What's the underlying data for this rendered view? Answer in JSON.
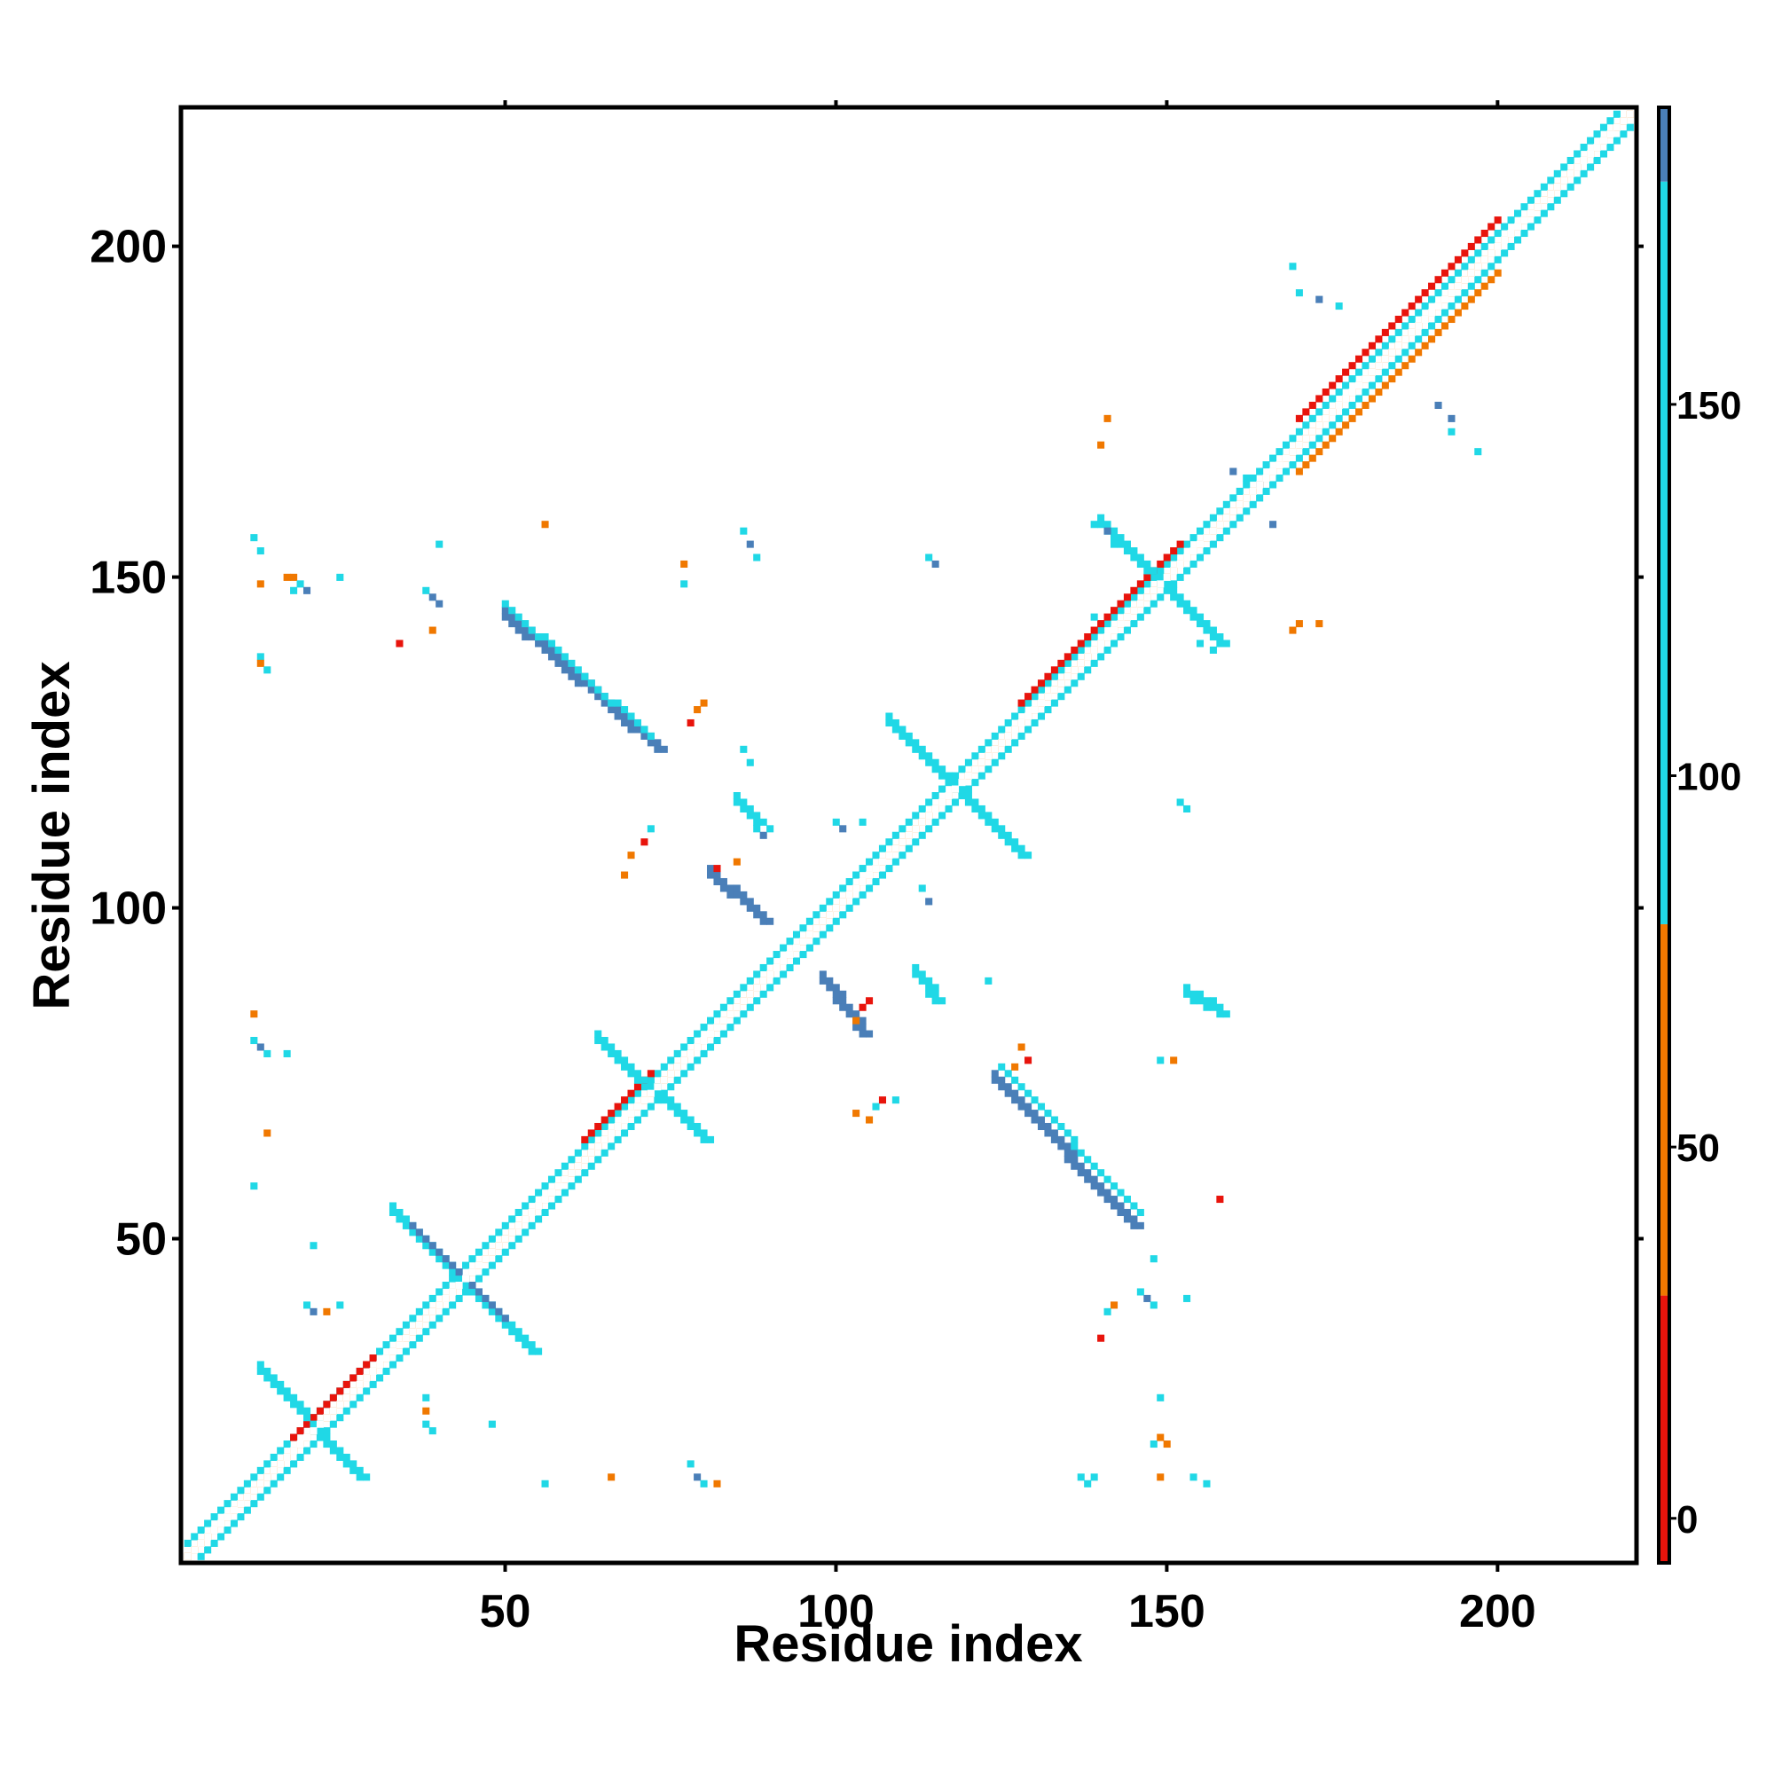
{
  "chart_data": {
    "type": "heatmap",
    "title": "",
    "xlabel": "Residue index",
    "ylabel": "Residue index",
    "xlim": [
      1,
      221
    ],
    "ylim": [
      1,
      221
    ],
    "xticks": [
      50,
      100,
      150,
      200
    ],
    "yticks": [
      50,
      100,
      150,
      200
    ],
    "grid": false,
    "colorbar": {
      "ticks": [
        0,
        50,
        100,
        150
      ],
      "range": [
        -6,
        190
      ],
      "bands": [
        {
          "from": -6,
          "to": 30,
          "color": "#e8140c"
        },
        {
          "from": 30,
          "to": 80,
          "color": "#f07800"
        },
        {
          "from": 80,
          "to": 180,
          "color": "#20d8e6"
        },
        {
          "from": 180,
          "to": 190,
          "color": "#4a7fb8"
        }
      ]
    },
    "colors": {
      "white": "#ffffff",
      "red": "#e8140c",
      "orange": "#f07800",
      "cyan": "#20d8e6",
      "steelblue": "#4a7fb8"
    },
    "segments": [
      {
        "c": "orange",
        "x1": 2,
        "y1": 2,
        "x2": 220,
        "y2": 220,
        "w": 1
      },
      {
        "c": "cyan",
        "x1": 2,
        "y1": 4,
        "x2": 218,
        "y2": 220,
        "w": 1
      },
      {
        "c": "cyan",
        "x1": 4,
        "y1": 2,
        "x2": 220,
        "y2": 218,
        "w": 1
      },
      {
        "c": "red",
        "x1": 18,
        "y1": 20,
        "x2": 30,
        "y2": 32,
        "w": 1
      },
      {
        "c": "red",
        "x1": 62,
        "y1": 65,
        "x2": 72,
        "y2": 75,
        "w": 1
      },
      {
        "c": "red",
        "x1": 128,
        "y1": 131,
        "x2": 152,
        "y2": 155,
        "w": 1
      },
      {
        "c": "red",
        "x1": 170,
        "y1": 174,
        "x2": 200,
        "y2": 204,
        "w": 1
      },
      {
        "c": "orange",
        "x1": 170,
        "y1": 166,
        "x2": 200,
        "y2": 196,
        "w": 1
      },
      {
        "c": "cyan",
        "x1": 13,
        "y1": 30,
        "x2": 28,
        "y2": 14,
        "w": 2
      },
      {
        "c": "cyan",
        "x1": 33,
        "y1": 54,
        "x2": 54,
        "y2": 33,
        "w": 2
      },
      {
        "c": "steelblue",
        "x1": 36,
        "y1": 52,
        "x2": 50,
        "y2": 38,
        "w": 1
      },
      {
        "c": "cyan",
        "x1": 64,
        "y1": 80,
        "x2": 80,
        "y2": 65,
        "w": 2
      },
      {
        "c": "cyan",
        "x1": 108,
        "y1": 128,
        "x2": 128,
        "y2": 108,
        "w": 2
      },
      {
        "c": "cyan",
        "x1": 140,
        "y1": 158,
        "x2": 158,
        "y2": 140,
        "w": 2
      },
      {
        "c": "steelblue",
        "x1": 50,
        "y1": 144,
        "x2": 73,
        "y2": 124,
        "w": 2
      },
      {
        "c": "cyan",
        "x1": 50,
        "y1": 146,
        "x2": 72,
        "y2": 126,
        "w": 1
      },
      {
        "c": "steelblue",
        "x1": 124,
        "y1": 74,
        "x2": 145,
        "y2": 52,
        "w": 2
      },
      {
        "c": "cyan",
        "x1": 126,
        "y1": 75,
        "x2": 146,
        "y2": 54,
        "w": 1
      },
      {
        "c": "steelblue",
        "x1": 81,
        "y1": 105,
        "x2": 89,
        "y2": 98,
        "w": 2
      },
      {
        "c": "steelblue",
        "x1": 98,
        "y1": 89,
        "x2": 104,
        "y2": 81,
        "w": 2
      },
      {
        "c": "cyan",
        "x1": 112,
        "y1": 90,
        "x2": 115,
        "y2": 86,
        "w": 2
      },
      {
        "c": "cyan",
        "x1": 153,
        "y1": 87,
        "x2": 158,
        "y2": 84,
        "w": 2
      },
      {
        "c": "cyan",
        "x1": 85,
        "y1": 116,
        "x2": 88,
        "y2": 113,
        "w": 2
      }
    ],
    "points": [
      {
        "c": "cyan",
        "x": 13,
        "y": 138
      },
      {
        "c": "orange",
        "x": 13,
        "y": 137
      },
      {
        "c": "cyan",
        "x": 14,
        "y": 136
      },
      {
        "c": "orange",
        "x": 17,
        "y": 150
      },
      {
        "c": "orange",
        "x": 18,
        "y": 150
      },
      {
        "c": "cyan",
        "x": 18,
        "y": 148
      },
      {
        "c": "cyan",
        "x": 19,
        "y": 149
      },
      {
        "c": "steelblue",
        "x": 20,
        "y": 148
      },
      {
        "c": "cyan",
        "x": 25,
        "y": 150
      },
      {
        "c": "orange",
        "x": 13,
        "y": 149
      },
      {
        "c": "cyan",
        "x": 12,
        "y": 156
      },
      {
        "c": "cyan",
        "x": 13,
        "y": 154
      },
      {
        "c": "cyan",
        "x": 38,
        "y": 148
      },
      {
        "c": "steelblue",
        "x": 39,
        "y": 147
      },
      {
        "c": "steelblue",
        "x": 40,
        "y": 146
      },
      {
        "c": "cyan",
        "x": 40,
        "y": 155
      },
      {
        "c": "orange",
        "x": 39,
        "y": 142
      },
      {
        "c": "red",
        "x": 34,
        "y": 140
      },
      {
        "c": "cyan",
        "x": 12,
        "y": 80
      },
      {
        "c": "steelblue",
        "x": 13,
        "y": 79
      },
      {
        "c": "cyan",
        "x": 14,
        "y": 78
      },
      {
        "c": "orange",
        "x": 12,
        "y": 84
      },
      {
        "c": "cyan",
        "x": 17,
        "y": 78
      },
      {
        "c": "orange",
        "x": 14,
        "y": 66
      },
      {
        "c": "cyan",
        "x": 12,
        "y": 58
      },
      {
        "c": "cyan",
        "x": 21,
        "y": 49
      },
      {
        "c": "cyan",
        "x": 20,
        "y": 40
      },
      {
        "c": "steelblue",
        "x": 21,
        "y": 39
      },
      {
        "c": "orange",
        "x": 23,
        "y": 39
      },
      {
        "c": "cyan",
        "x": 25,
        "y": 40
      },
      {
        "c": "cyan",
        "x": 38,
        "y": 22
      },
      {
        "c": "cyan",
        "x": 39,
        "y": 21
      },
      {
        "c": "orange",
        "x": 38,
        "y": 24
      },
      {
        "c": "cyan",
        "x": 38,
        "y": 26
      },
      {
        "c": "cyan",
        "x": 48,
        "y": 22
      },
      {
        "c": "cyan",
        "x": 78,
        "y": 16
      },
      {
        "c": "steelblue",
        "x": 79,
        "y": 14
      },
      {
        "c": "cyan",
        "x": 80,
        "y": 13
      },
      {
        "c": "orange",
        "x": 82,
        "y": 13
      },
      {
        "c": "orange",
        "x": 66,
        "y": 14
      },
      {
        "c": "cyan",
        "x": 56,
        "y": 13
      },
      {
        "c": "cyan",
        "x": 137,
        "y": 14
      },
      {
        "c": "cyan",
        "x": 138,
        "y": 13
      },
      {
        "c": "cyan",
        "x": 139,
        "y": 14
      },
      {
        "c": "cyan",
        "x": 148,
        "y": 19
      },
      {
        "c": "orange",
        "x": 149,
        "y": 20
      },
      {
        "c": "orange",
        "x": 150,
        "y": 19
      },
      {
        "c": "orange",
        "x": 149,
        "y": 14
      },
      {
        "c": "cyan",
        "x": 149,
        "y": 26
      },
      {
        "c": "cyan",
        "x": 154,
        "y": 14
      },
      {
        "c": "cyan",
        "x": 156,
        "y": 13
      },
      {
        "c": "cyan",
        "x": 146,
        "y": 42
      },
      {
        "c": "steelblue",
        "x": 147,
        "y": 41
      },
      {
        "c": "cyan",
        "x": 148,
        "y": 40
      },
      {
        "c": "cyan",
        "x": 153,
        "y": 41
      },
      {
        "c": "orange",
        "x": 142,
        "y": 40
      },
      {
        "c": "red",
        "x": 140,
        "y": 35
      },
      {
        "c": "cyan",
        "x": 141,
        "y": 39
      },
      {
        "c": "cyan",
        "x": 148,
        "y": 47
      },
      {
        "c": "cyan",
        "x": 149,
        "y": 77
      },
      {
        "c": "orange",
        "x": 151,
        "y": 77
      },
      {
        "c": "red",
        "x": 158,
        "y": 56
      },
      {
        "c": "orange",
        "x": 128,
        "y": 79
      },
      {
        "c": "red",
        "x": 129,
        "y": 77
      },
      {
        "c": "orange",
        "x": 127,
        "y": 76
      },
      {
        "c": "cyan",
        "x": 125,
        "y": 76
      },
      {
        "c": "cyan",
        "x": 123,
        "y": 89
      },
      {
        "c": "cyan",
        "x": 106,
        "y": 70
      },
      {
        "c": "red",
        "x": 107,
        "y": 71
      },
      {
        "c": "orange",
        "x": 105,
        "y": 68
      },
      {
        "c": "cyan",
        "x": 109,
        "y": 71
      },
      {
        "c": "orange",
        "x": 103,
        "y": 69
      },
      {
        "c": "red",
        "x": 71,
        "y": 110
      },
      {
        "c": "orange",
        "x": 69,
        "y": 108
      },
      {
        "c": "cyan",
        "x": 72,
        "y": 112
      },
      {
        "c": "orange",
        "x": 68,
        "y": 105
      },
      {
        "c": "red",
        "x": 82,
        "y": 106
      },
      {
        "c": "orange",
        "x": 85,
        "y": 107
      },
      {
        "c": "cyan",
        "x": 88,
        "y": 112
      },
      {
        "c": "steelblue",
        "x": 89,
        "y": 111
      },
      {
        "c": "cyan",
        "x": 90,
        "y": 112
      },
      {
        "c": "cyan",
        "x": 100,
        "y": 113
      },
      {
        "c": "cyan",
        "x": 104,
        "y": 113
      },
      {
        "c": "steelblue",
        "x": 101,
        "y": 112
      },
      {
        "c": "cyan",
        "x": 113,
        "y": 103
      },
      {
        "c": "steelblue",
        "x": 114,
        "y": 101
      },
      {
        "c": "red",
        "x": 104,
        "y": 85
      },
      {
        "c": "orange",
        "x": 103,
        "y": 83
      },
      {
        "c": "red",
        "x": 105,
        "y": 86
      },
      {
        "c": "cyan",
        "x": 153,
        "y": 115
      },
      {
        "c": "cyan",
        "x": 152,
        "y": 116
      },
      {
        "c": "orange",
        "x": 80,
        "y": 131
      },
      {
        "c": "red",
        "x": 78,
        "y": 128
      },
      {
        "c": "orange",
        "x": 79,
        "y": 130
      },
      {
        "c": "cyan",
        "x": 86,
        "y": 124
      },
      {
        "c": "cyan",
        "x": 87,
        "y": 122
      },
      {
        "c": "cyan",
        "x": 86,
        "y": 157
      },
      {
        "c": "steelblue",
        "x": 87,
        "y": 155
      },
      {
        "c": "cyan",
        "x": 88,
        "y": 153
      },
      {
        "c": "orange",
        "x": 77,
        "y": 152
      },
      {
        "c": "cyan",
        "x": 77,
        "y": 149
      },
      {
        "c": "orange",
        "x": 56,
        "y": 158
      },
      {
        "c": "cyan",
        "x": 114,
        "y": 153
      },
      {
        "c": "steelblue",
        "x": 115,
        "y": 152
      },
      {
        "c": "cyan",
        "x": 139,
        "y": 158
      },
      {
        "c": "steelblue",
        "x": 141,
        "y": 157
      },
      {
        "c": "cyan",
        "x": 142,
        "y": 155
      },
      {
        "c": "cyan",
        "x": 139,
        "y": 144
      },
      {
        "c": "cyan",
        "x": 155,
        "y": 140
      },
      {
        "c": "cyan",
        "x": 157,
        "y": 139
      },
      {
        "c": "orange",
        "x": 170,
        "y": 143
      },
      {
        "c": "orange",
        "x": 173,
        "y": 143
      },
      {
        "c": "orange",
        "x": 169,
        "y": 142
      },
      {
        "c": "orange",
        "x": 141,
        "y": 174
      },
      {
        "c": "orange",
        "x": 140,
        "y": 170
      },
      {
        "c": "steelblue",
        "x": 160,
        "y": 166
      },
      {
        "c": "cyan",
        "x": 162,
        "y": 165
      },
      {
        "c": "steelblue",
        "x": 164,
        "y": 164
      },
      {
        "c": "steelblue",
        "x": 166,
        "y": 158
      },
      {
        "c": "cyan",
        "x": 169,
        "y": 197
      },
      {
        "c": "cyan",
        "x": 170,
        "y": 193
      },
      {
        "c": "steelblue",
        "x": 173,
        "y": 192
      },
      {
        "c": "cyan",
        "x": 176,
        "y": 191
      },
      {
        "c": "steelblue",
        "x": 191,
        "y": 176
      },
      {
        "c": "cyan",
        "x": 193,
        "y": 172
      },
      {
        "c": "steelblue",
        "x": 193,
        "y": 174
      },
      {
        "c": "cyan",
        "x": 197,
        "y": 169
      }
    ]
  }
}
